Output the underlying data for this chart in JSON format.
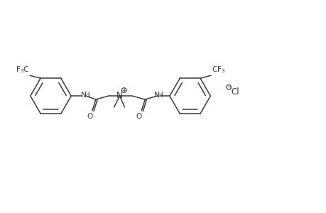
{
  "background_color": "#ffffff",
  "line_color": "#3a3a3a",
  "line_width": 1.1,
  "font_size": 7.5,
  "fig_width": 4.6,
  "fig_height": 3.0,
  "dpi": 100,
  "xlim": [
    0,
    46
  ],
  "ylim": [
    0,
    30
  ]
}
